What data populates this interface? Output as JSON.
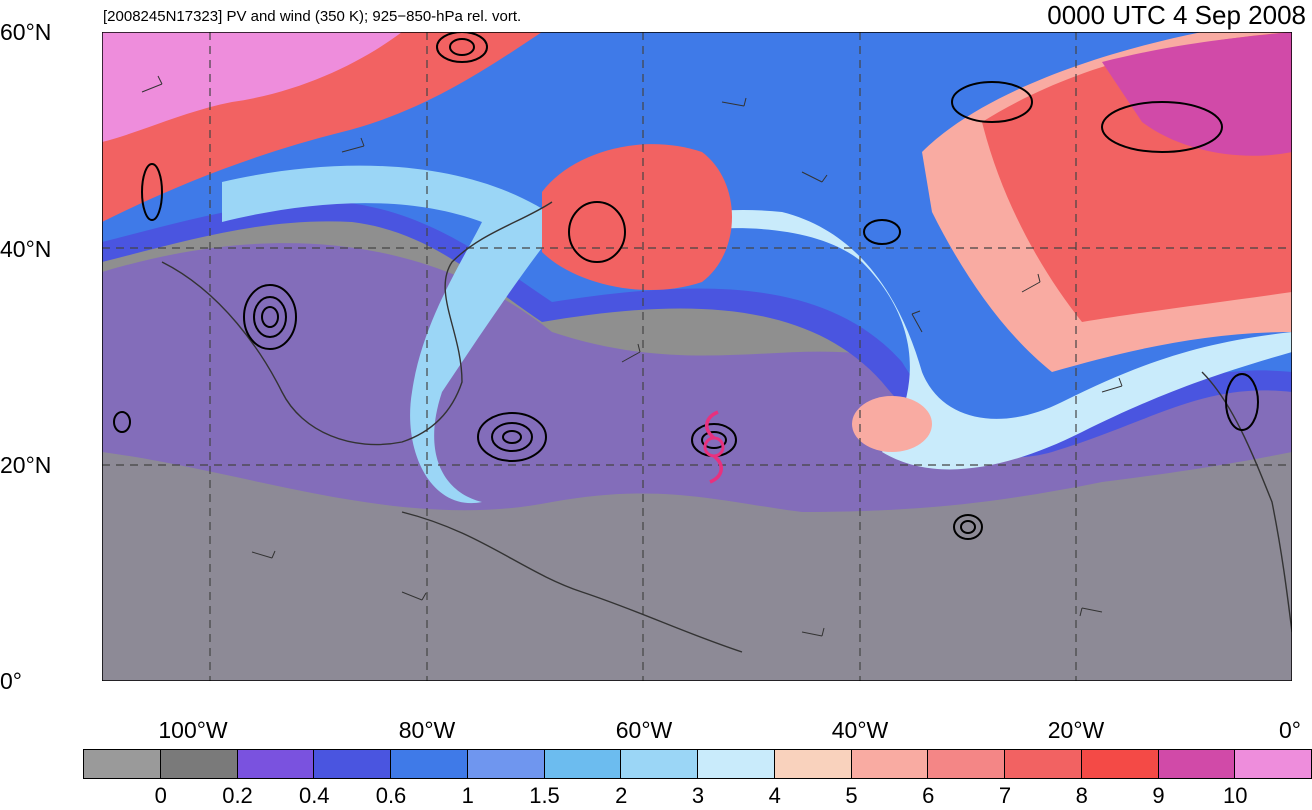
{
  "header": {
    "left_title": "[2008245N17323] PV and wind (350 K); 925−850-hPa rel. vort.",
    "right_title": "0000 UTC 4 Sep 2008"
  },
  "map": {
    "lat_labels": [
      "60°N",
      "40°N",
      "20°N",
      "0°"
    ],
    "lon_labels": [
      "100°W",
      "80°W",
      "60°W",
      "40°W",
      "20°W",
      "0°"
    ],
    "lat_range": [
      0,
      60
    ],
    "lon_range": [
      -110,
      0
    ],
    "storm_symbol": "tropical-storm-icon",
    "storm_color": "#e8317e"
  },
  "colorbar": {
    "colors": [
      "#9a9a9a",
      "#7a7a7a",
      "#7a52df",
      "#4a55e0",
      "#3f7ae8",
      "#6f96ef",
      "#6cbcef",
      "#9bd6f6",
      "#c9ebfb",
      "#f9d2bd",
      "#f9aba2",
      "#f48686",
      "#f26262",
      "#f44a46",
      "#d14aa8",
      "#ee8ddc"
    ],
    "labels": [
      "0",
      "0.2",
      "0.4",
      "0.6",
      "1",
      "1.5",
      "2",
      "3",
      "4",
      "5",
      "6",
      "7",
      "8",
      "9",
      "10"
    ]
  }
}
